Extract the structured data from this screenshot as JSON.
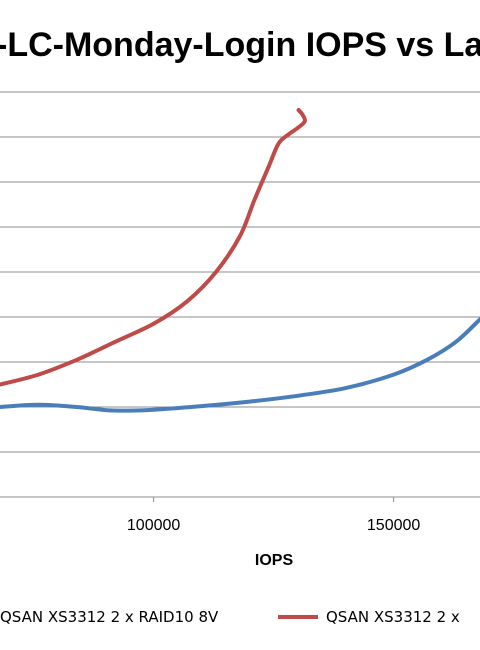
{
  "chart_data": {
    "type": "line",
    "title": "-LC-Monday-Login IOPS vs Late",
    "xlabel": "IOPS",
    "x_ticks": [
      "100000",
      "150000"
    ],
    "x_tick_values": [
      100000,
      150000
    ],
    "xlim": [
      68000,
      168000
    ],
    "ylim": [
      0,
      9
    ],
    "grid": true,
    "legend_position": "bottom",
    "series": [
      {
        "name": "QSAN XS3312 2 x RAID10 8V",
        "color": "#4a7ebb",
        "x": [
          68000,
          76000,
          84000,
          90000,
          95000,
          100000,
          110000,
          120000,
          130000,
          140000,
          150000,
          157000,
          163000,
          168000
        ],
        "y": [
          2.0,
          2.05,
          2.0,
          1.93,
          1.92,
          1.94,
          2.02,
          2.12,
          2.25,
          2.42,
          2.72,
          3.05,
          3.45,
          3.95
        ]
      },
      {
        "name": "QSAN XS3312 2 x",
        "color": "#be4b48",
        "x": [
          68000,
          76000,
          84000,
          92000,
          100000,
          107000,
          113000,
          118000,
          121000,
          124000,
          126000,
          128000,
          130000,
          131500,
          131000,
          130200
        ],
        "y": [
          2.5,
          2.72,
          3.05,
          3.45,
          3.85,
          4.35,
          5.0,
          5.8,
          6.6,
          7.35,
          7.85,
          8.05,
          8.2,
          8.35,
          8.5,
          8.6
        ]
      }
    ]
  }
}
